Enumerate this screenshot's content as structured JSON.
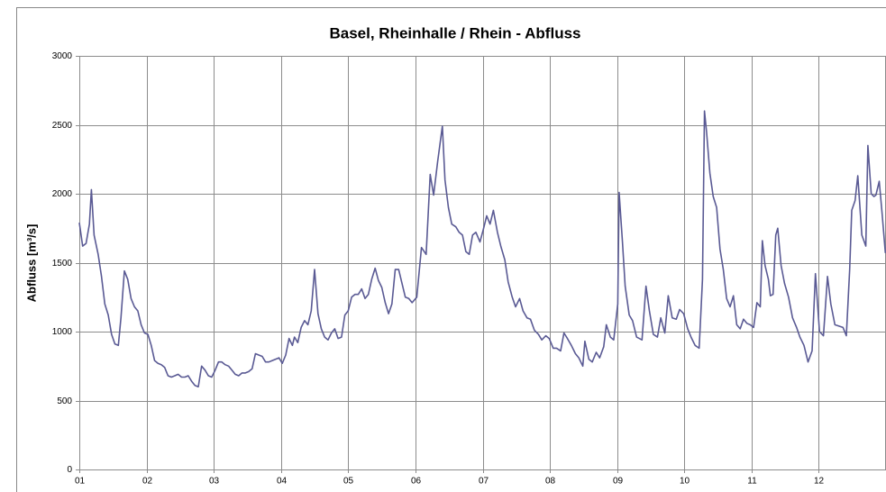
{
  "chart_data": {
    "type": "line",
    "title": "Basel, Rheinhalle / Rhein - Abfluss",
    "y_label": "Abfluss [m³/s]",
    "color": "#5a5a94",
    "grid": true,
    "xlim": [
      1,
      13
    ],
    "ylim": [
      0,
      3000
    ],
    "yticks": [
      0,
      500,
      1000,
      1500,
      2000,
      2500,
      3000
    ],
    "xticks": [
      {
        "value": 1,
        "label": "01"
      },
      {
        "value": 2,
        "label": "02"
      },
      {
        "value": 3,
        "label": "03"
      },
      {
        "value": 4,
        "label": "04"
      },
      {
        "value": 5,
        "label": "05"
      },
      {
        "value": 6,
        "label": "06"
      },
      {
        "value": 7,
        "label": "07"
      },
      {
        "value": 8,
        "label": "08"
      },
      {
        "value": 9,
        "label": "09"
      },
      {
        "value": 10,
        "label": "10"
      },
      {
        "value": 11,
        "label": "11"
      },
      {
        "value": 12,
        "label": "12"
      }
    ],
    "x": [
      1.0,
      1.05,
      1.1,
      1.15,
      1.18,
      1.22,
      1.28,
      1.33,
      1.38,
      1.43,
      1.48,
      1.53,
      1.58,
      1.62,
      1.67,
      1.72,
      1.77,
      1.82,
      1.87,
      1.92,
      1.97,
      2.02,
      2.07,
      2.12,
      2.17,
      2.22,
      2.27,
      2.32,
      2.37,
      2.42,
      2.47,
      2.52,
      2.57,
      2.62,
      2.67,
      2.72,
      2.77,
      2.82,
      2.87,
      2.92,
      2.97,
      3.02,
      3.07,
      3.12,
      3.17,
      3.22,
      3.27,
      3.32,
      3.37,
      3.42,
      3.47,
      3.52,
      3.57,
      3.62,
      3.67,
      3.72,
      3.77,
      3.82,
      3.87,
      3.92,
      3.97,
      4.02,
      4.07,
      4.12,
      4.17,
      4.2,
      4.25,
      4.3,
      4.35,
      4.4,
      4.45,
      4.5,
      4.55,
      4.6,
      4.65,
      4.7,
      4.75,
      4.8,
      4.85,
      4.9,
      4.95,
      5.0,
      5.05,
      5.1,
      5.15,
      5.2,
      5.25,
      5.3,
      5.35,
      5.4,
      5.45,
      5.5,
      5.55,
      5.6,
      5.65,
      5.7,
      5.75,
      5.8,
      5.85,
      5.9,
      5.95,
      6.02,
      6.09,
      6.16,
      6.22,
      6.27,
      6.33,
      6.4,
      6.44,
      6.49,
      6.54,
      6.6,
      6.65,
      6.7,
      6.75,
      6.8,
      6.85,
      6.9,
      6.96,
      7.01,
      7.06,
      7.11,
      7.16,
      7.22,
      7.27,
      7.33,
      7.38,
      7.44,
      7.49,
      7.55,
      7.6,
      7.66,
      7.71,
      7.77,
      7.83,
      7.88,
      7.94,
      7.99,
      8.05,
      8.1,
      8.16,
      8.21,
      8.26,
      8.32,
      8.38,
      8.43,
      8.49,
      8.52,
      8.58,
      8.63,
      8.69,
      8.74,
      8.8,
      8.84,
      8.9,
      8.95,
      9.01,
      9.03,
      9.08,
      9.12,
      9.18,
      9.23,
      9.29,
      9.37,
      9.43,
      9.48,
      9.54,
      9.6,
      9.65,
      9.71,
      9.76,
      9.82,
      9.88,
      9.93,
      9.99,
      10.05,
      10.1,
      10.16,
      10.22,
      10.27,
      10.3,
      10.33,
      10.38,
      10.43,
      10.48,
      10.53,
      10.58,
      10.63,
      10.68,
      10.73,
      10.78,
      10.83,
      10.88,
      10.93,
      10.98,
      11.03,
      11.08,
      11.13,
      11.16,
      11.2,
      11.25,
      11.28,
      11.32,
      11.36,
      11.39,
      11.44,
      11.49,
      11.55,
      11.61,
      11.67,
      11.72,
      11.78,
      11.84,
      11.9,
      11.95,
      12.01,
      12.07,
      12.13,
      12.18,
      12.24,
      12.3,
      12.36,
      12.41,
      12.46,
      12.49,
      12.54,
      12.58,
      12.64,
      12.7,
      12.73,
      12.78,
      12.82,
      12.85,
      12.9,
      12.94,
      12.99
    ],
    "values": [
      1790,
      1620,
      1640,
      1780,
      2030,
      1700,
      1560,
      1400,
      1200,
      1120,
      980,
      910,
      900,
      1100,
      1440,
      1380,
      1240,
      1180,
      1150,
      1050,
      990,
      980,
      900,
      790,
      770,
      760,
      740,
      680,
      670,
      680,
      690,
      670,
      670,
      680,
      640,
      610,
      600,
      750,
      720,
      680,
      670,
      720,
      780,
      780,
      760,
      750,
      720,
      690,
      680,
      700,
      700,
      710,
      730,
      840,
      830,
      820,
      780,
      780,
      790,
      800,
      810,
      770,
      830,
      950,
      900,
      960,
      920,
      1030,
      1080,
      1050,
      1150,
      1450,
      1130,
      1020,
      960,
      940,
      990,
      1020,
      950,
      960,
      1120,
      1150,
      1250,
      1270,
      1270,
      1310,
      1240,
      1270,
      1380,
      1460,
      1370,
      1320,
      1210,
      1130,
      1200,
      1450,
      1450,
      1350,
      1250,
      1240,
      1210,
      1250,
      1610,
      1560,
      2140,
      1990,
      2230,
      2490,
      2100,
      1900,
      1780,
      1760,
      1720,
      1700,
      1580,
      1560,
      1700,
      1720,
      1650,
      1740,
      1840,
      1780,
      1880,
      1720,
      1620,
      1520,
      1360,
      1250,
      1180,
      1240,
      1150,
      1100,
      1090,
      1010,
      980,
      940,
      970,
      950,
      880,
      880,
      860,
      990,
      950,
      900,
      840,
      810,
      750,
      930,
      800,
      780,
      850,
      810,
      890,
      1050,
      960,
      940,
      1200,
      2010,
      1650,
      1330,
      1120,
      1080,
      960,
      940,
      1330,
      1150,
      980,
      960,
      1100,
      990,
      1260,
      1100,
      1090,
      1160,
      1130,
      1020,
      960,
      900,
      880,
      1380,
      2600,
      2450,
      2150,
      1980,
      1900,
      1600,
      1450,
      1240,
      1180,
      1260,
      1050,
      1020,
      1090,
      1060,
      1050,
      1030,
      1210,
      1180,
      1660,
      1480,
      1380,
      1260,
      1270,
      1700,
      1750,
      1480,
      1350,
      1250,
      1100,
      1030,
      960,
      900,
      780,
      860,
      1420,
      1000,
      970,
      1400,
      1200,
      1050,
      1040,
      1030,
      970,
      1450,
      1880,
      1950,
      2130,
      1700,
      1620,
      2350,
      2000,
      1980,
      1990,
      2090,
      1870,
      1570
    ]
  }
}
